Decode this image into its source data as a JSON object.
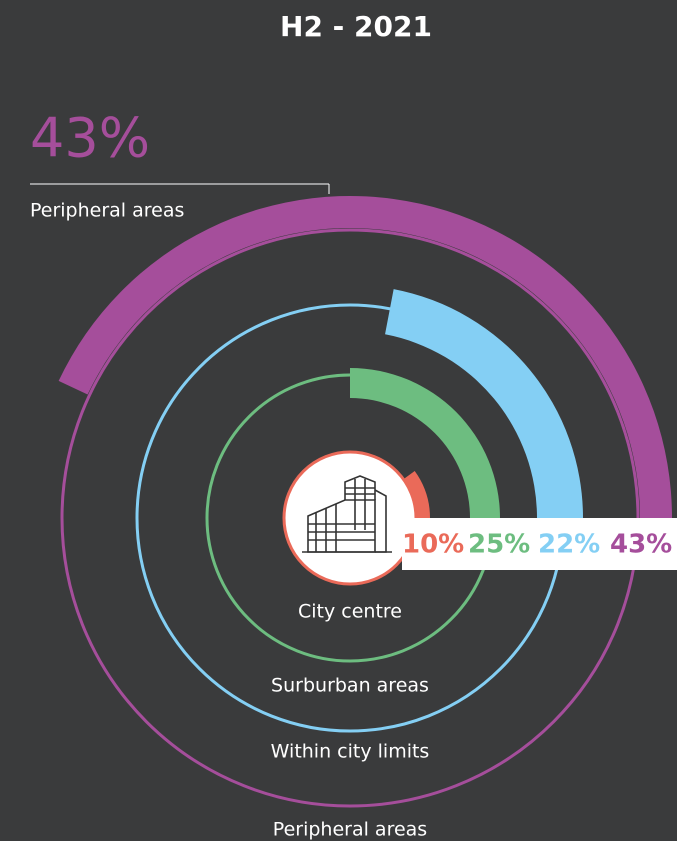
{
  "chart_data": {
    "type": "radial_bar",
    "title": "H2 - 2021",
    "categories": [
      "City centre",
      "Surburban areas",
      "Within city limits",
      "Peripheral areas"
    ],
    "values": [
      10,
      25,
      22,
      43
    ],
    "value_labels": [
      "10%",
      "25%",
      "22%",
      "43%"
    ],
    "colors": [
      "#ea6a59",
      "#6dbd80",
      "#84cff4",
      "#a54e9b"
    ]
  }
}
